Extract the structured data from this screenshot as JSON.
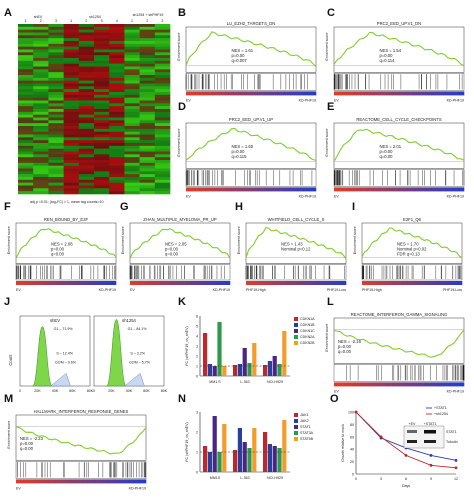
{
  "panel_labels": [
    "A",
    "B",
    "C",
    "D",
    "E",
    "F",
    "G",
    "H",
    "I",
    "J",
    "K",
    "L",
    "M",
    "N",
    "O"
  ],
  "heatmap": {
    "groups": [
      "shEV",
      "sh1254",
      "sh1254 + shPHF19"
    ],
    "sample_numbers": [
      "1",
      "2",
      "3",
      "1",
      "2",
      "3",
      "4",
      "1",
      "2",
      "3"
    ],
    "caption": "adj.p <0.01; |log₂FC| > 1, mean tag counts>10"
  },
  "enrichment_ylabel": "Enrichment score",
  "gsea": [
    {
      "id": "B",
      "title": "LU_EZH2_TARGETS_DN",
      "nes": "NES = 1.61",
      "p": "p=0.00",
      "q": "q=0.007",
      "left": "EV",
      "right": "KD-PHF19"
    },
    {
      "id": "C",
      "title": "PRC2_EED_UP.V1_DN",
      "nes": "NES = 1.54",
      "p": "p=0.00",
      "q": "q=0.114",
      "left": "EV",
      "right": "KD-PHF19"
    },
    {
      "id": "D",
      "title": "PRC2_EED_UP.V1_UP",
      "nes": "NES = 1.60",
      "p": "p=0.00",
      "q": "q=0.115",
      "left": "EV",
      "right": "KD-PHF19"
    },
    {
      "id": "E",
      "title": "REACTOME_CELL_CYCLE_CHECKPOINTS",
      "nes": "NES = 2.01",
      "p": "p=0.00",
      "q": "q=0.00",
      "left": "EV",
      "right": "KD-PHF19"
    },
    {
      "id": "F",
      "title": "REN_BOUND_BY_E2F",
      "nes": "NES = 2.08",
      "p": "p=0.00",
      "q": "q=0.00",
      "left": "EV",
      "right": "KD-PHF19"
    },
    {
      "id": "G",
      "title": "ZHAN_MULTIPLE_MYELOMA_PR_UP",
      "nes": "NES = 2.05",
      "p": "p=0.00",
      "q": "q=0.00",
      "left": "EV",
      "right": "KD-PHF19"
    },
    {
      "id": "H",
      "title": "WHITFIELD_CELL_CYCLE_S",
      "nes": "NES = 1.43",
      "p": "Nominal p=0.12",
      "q": "",
      "left": "PHF19-High",
      "right": "PHF19-Low"
    },
    {
      "id": "I",
      "title": "E2F1_Q6",
      "nes": "NES = 1.70",
      "p": "Nominal p=0.02",
      "q": "FDR q=0.13",
      "left": "PHF19-High",
      "right": "PHF19-Low"
    },
    {
      "id": "L",
      "title": "REACTOME_INTERFERON_GAMMA_SIGNALING",
      "nes": "NES = -2.16",
      "p": "p=0.00",
      "q": "q=0.00",
      "left": "EV",
      "right": "KD-PHF19"
    },
    {
      "id": "M",
      "title": "HALLMARK_INTERFERON_RESPONSE_GENES",
      "nes": "NES = -2.23",
      "p": "p=0.00",
      "q": "q=0.00",
      "left": "EV",
      "right": "KD-PHF19"
    }
  ],
  "flow": {
    "ylabel": "Count",
    "hists": [
      {
        "title": "shEV",
        "g1": "G1 – 71.9%",
        "s": "S – 12.4%",
        "g2m": "G2/M – 9.6%"
      },
      {
        "title": "sh1254",
        "g1": "G1 – 84.1%",
        "s": "S – 3.2%",
        "g2m": "G2/M – 5.7%"
      }
    ],
    "xticks": [
      "0",
      "20K",
      "40K",
      "60K",
      "80K"
    ]
  },
  "bars_ylabel": "FC (shPHF19_vs_shEV)",
  "chart_data": [
    {
      "type": "bar",
      "id": "K",
      "ylabel": "FC (shPHF19_vs_shEV)",
      "ylim": [
        0,
        6
      ],
      "yticks": [
        "0",
        "1",
        "2",
        "3",
        "4",
        "5",
        "6"
      ],
      "categories": [
        "MM1.S",
        "L-363",
        "NCI-H929"
      ],
      "series": [
        {
          "name": "CDKN1A",
          "color": "#c0272d",
          "values": [
            4.3,
            1.1,
            1.1
          ]
        },
        {
          "name": "CDKN1B",
          "color": "#2a3f9c",
          "values": [
            1.2,
            1.2,
            1.5
          ]
        },
        {
          "name": "CDKN1C",
          "color": "#4b2585",
          "values": [
            1.0,
            2.8,
            2.0
          ]
        },
        {
          "name": "CDKN2A",
          "color": "#2e9a47",
          "values": [
            5.4,
            1.3,
            1.2
          ]
        },
        {
          "name": "CDKN2B",
          "color": "#f39c2c",
          "values": [
            1.0,
            3.3,
            4.5
          ]
        }
      ],
      "dashed_reference": 1
    },
    {
      "type": "bar",
      "id": "N",
      "ylabel": "FC (shPHF19_vs_shEV)",
      "ylim": [
        0,
        3
      ],
      "yticks": [
        "0",
        "1",
        "2",
        "3"
      ],
      "categories": [
        "MM1S",
        "L-363",
        "NCI-H929"
      ],
      "series": [
        {
          "name": "JAK1",
          "color": "#c0272d",
          "values": [
            1.3,
            1.1,
            2.0
          ]
        },
        {
          "name": "JAK2",
          "color": "#2a3f9c",
          "values": [
            1.0,
            2.2,
            1.4
          ]
        },
        {
          "name": "STAT1",
          "color": "#4b2585",
          "values": [
            2.8,
            1.5,
            1.3
          ]
        },
        {
          "name": "STAT3A",
          "color": "#2e9a47",
          "values": [
            1.0,
            1.2,
            1.2
          ]
        },
        {
          "name": "STAT5B",
          "color": "#f39c2c",
          "values": [
            2.4,
            2.2,
            2.6
          ]
        }
      ],
      "dashed_reference": 1
    },
    {
      "type": "line",
      "id": "O",
      "ylabel": "Growth relative to mock",
      "xlabel": "Days",
      "x": [
        0,
        3,
        6,
        9,
        12
      ],
      "xticks": [
        "0",
        "3",
        "6",
        "9",
        "12"
      ],
      "yticks": [
        "0",
        "20",
        "40",
        "60",
        "80",
        "100"
      ],
      "ylim": [
        0,
        100
      ],
      "series": [
        {
          "name": "+STAT1",
          "color": "#2a3f9c",
          "values": [
            100,
            58,
            42,
            30,
            22
          ]
        },
        {
          "name": "+sh1254",
          "color": "#c0272d",
          "values": [
            100,
            60,
            30,
            14,
            10
          ]
        }
      ]
    }
  ],
  "western": {
    "lanes": [
      "+EV",
      "+STAT1"
    ],
    "bands": [
      "STAT1",
      "Tubulin"
    ]
  }
}
